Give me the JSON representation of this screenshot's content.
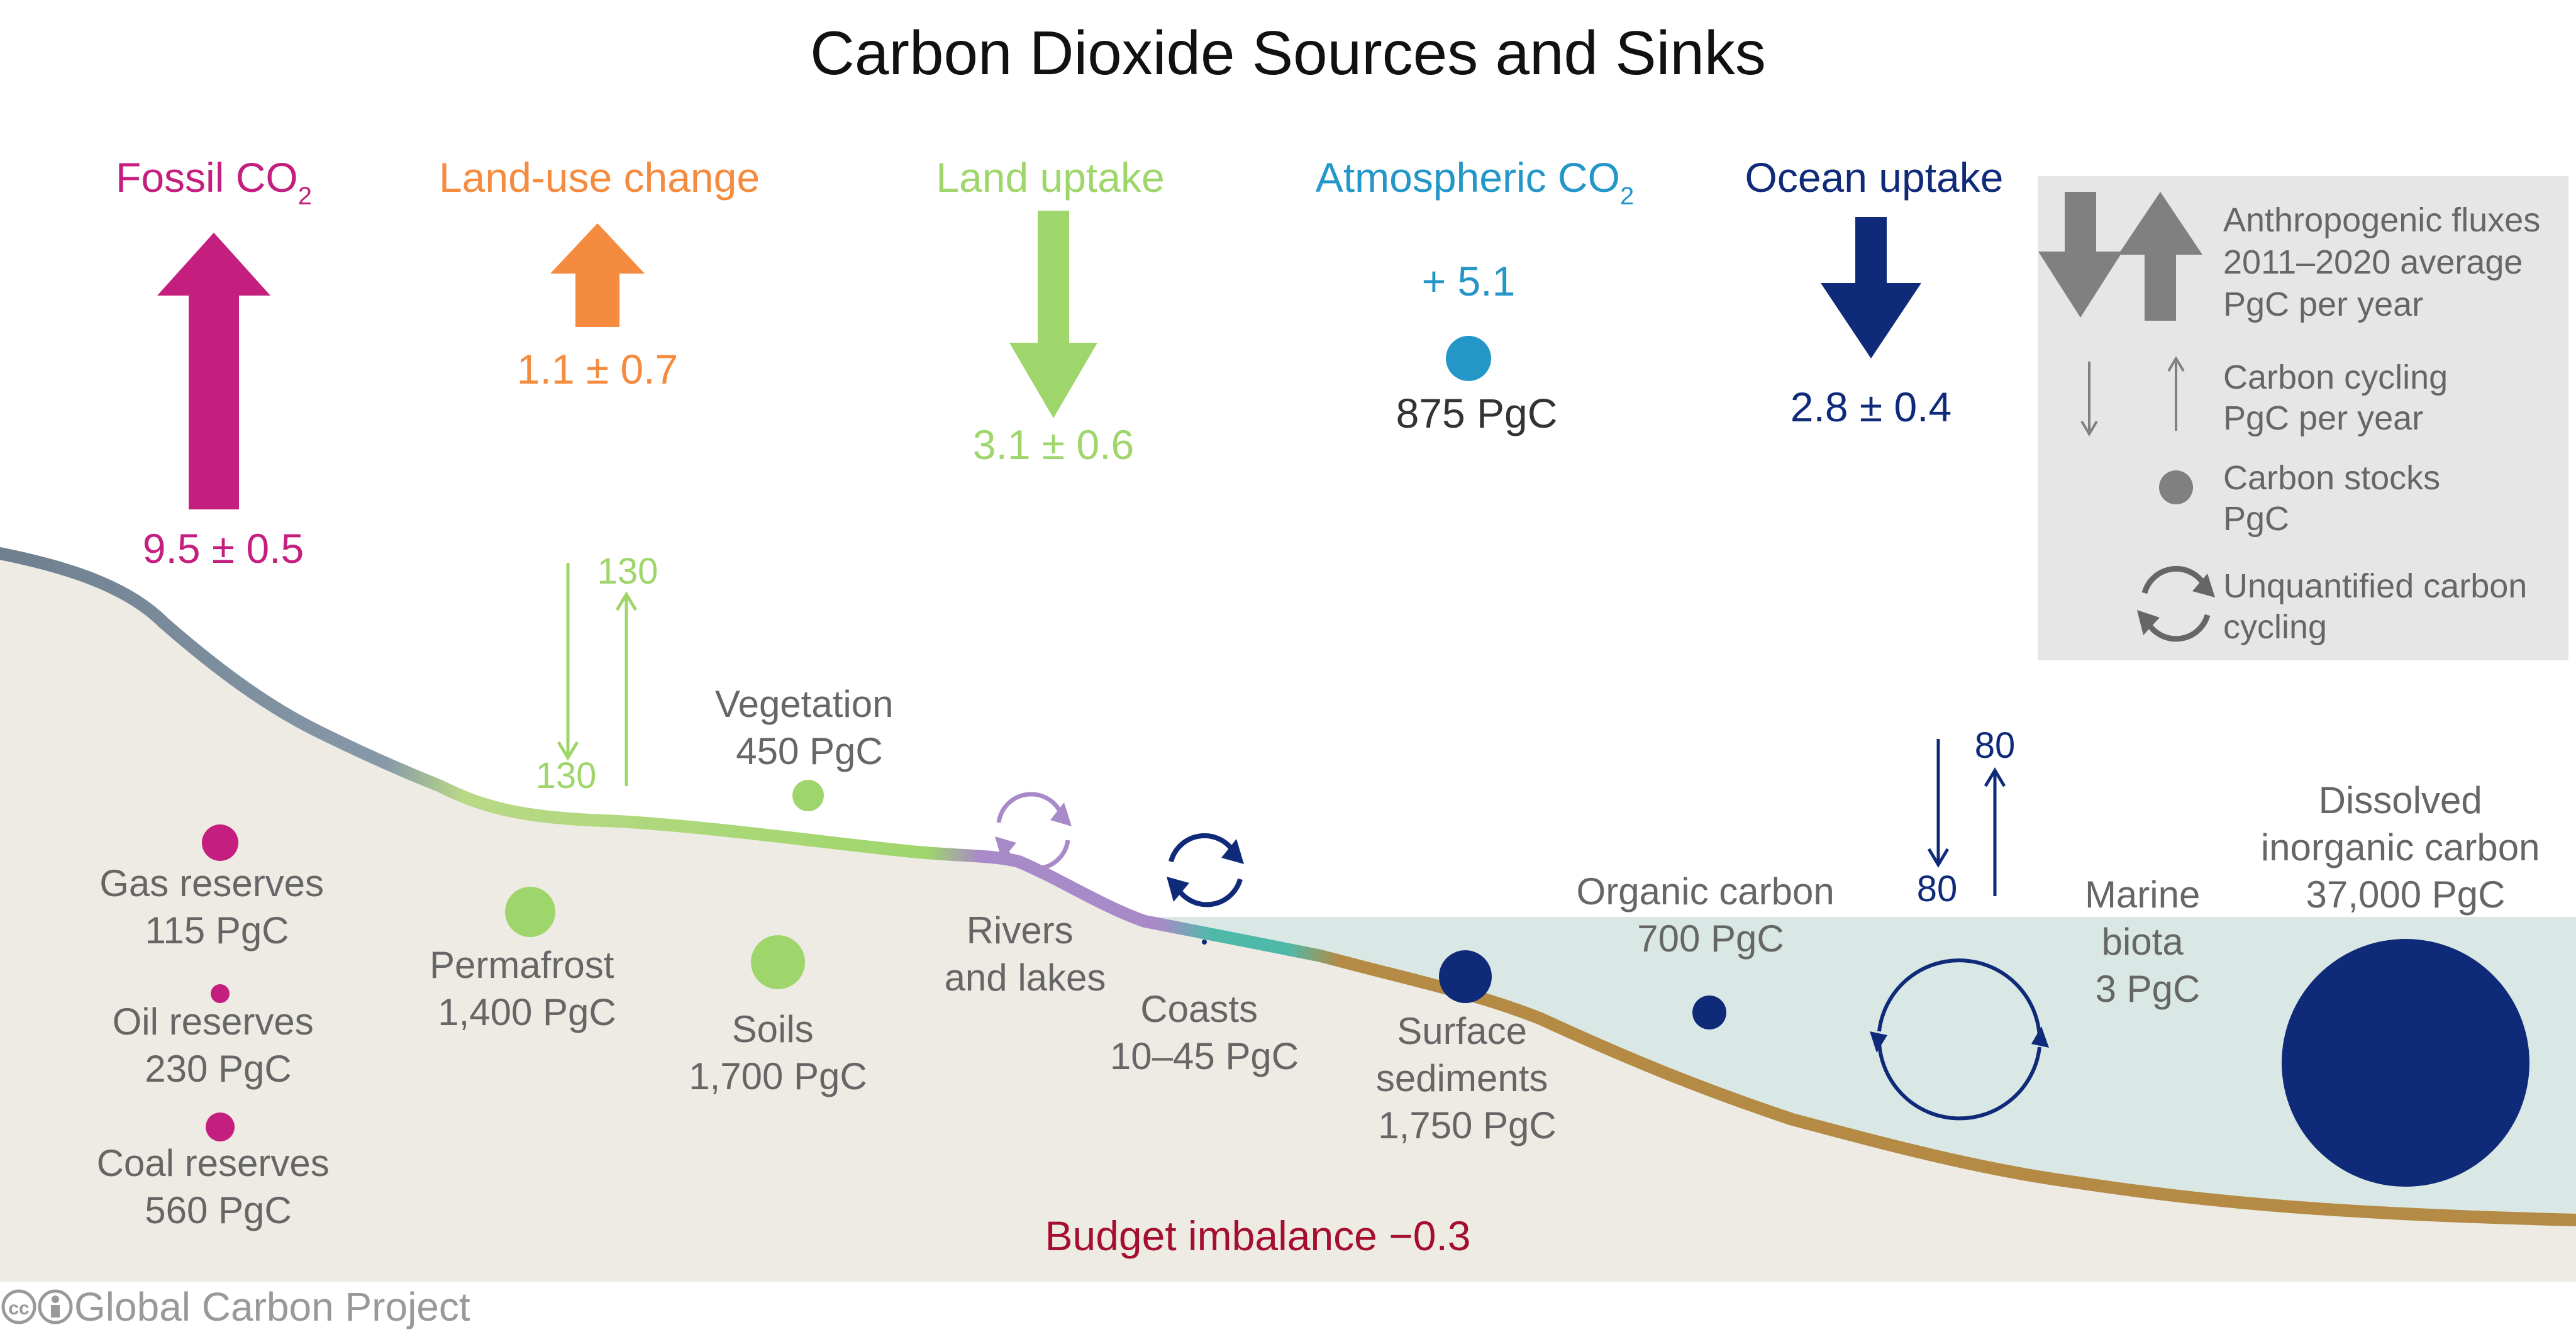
{
  "title": "Carbon Dioxide Sources and Sinks",
  "fluxes": {
    "fossil": {
      "label": "Fossil CO",
      "sub": "2",
      "value": "9.5 ± 0.5",
      "direction": "up",
      "color": "#c41f7e"
    },
    "land_use": {
      "label": "Land-use change",
      "value": "1.1 ± 0.7",
      "direction": "up",
      "color": "#f58b3f"
    },
    "land_uptake": {
      "label": "Land uptake",
      "value": "3.1 ± 0.6",
      "direction": "down",
      "color": "#9fd66b"
    },
    "atmospheric": {
      "label": "Atmospheric CO",
      "sub": "2",
      "growth": "+ 5.1",
      "stock": "875 PgC",
      "color": "#2596c8"
    },
    "ocean_uptake": {
      "label": "Ocean uptake",
      "value": "2.8 ± 0.4",
      "direction": "down",
      "color": "#102a7a"
    }
  },
  "legend": {
    "anthropogenic": [
      "Anthropogenic fluxes",
      "2011–2020 average",
      "PgC per year"
    ],
    "cycling": [
      "Carbon cycling",
      "PgC per year"
    ],
    "stocks": [
      "Carbon stocks",
      "PgC"
    ],
    "unquantified": [
      "Unquantified carbon",
      "cycling"
    ]
  },
  "land_cycle": {
    "down": "130",
    "up": "130"
  },
  "ocean_cycle": {
    "down": "80",
    "up": "80"
  },
  "stocks": {
    "gas": [
      "Gas reserves",
      "115 PgC"
    ],
    "oil": [
      "Oil reserves",
      "230 PgC"
    ],
    "coal": [
      "Coal reserves",
      "560 PgC"
    ],
    "permafrost": [
      "Permafrost",
      "1,400 PgC"
    ],
    "vegetation": [
      "Vegetation",
      "450 PgC"
    ],
    "soils": [
      "Soils",
      "1,700 PgC"
    ],
    "rivers": [
      "Rivers",
      "and lakes"
    ],
    "coasts": [
      "Coasts",
      "10–45 PgC"
    ],
    "sediments": [
      "Surface",
      "sediments",
      "1,750 PgC"
    ],
    "organic": [
      "Organic carbon",
      "700 PgC"
    ],
    "marine": [
      "Marine",
      "biota",
      "3 PgC"
    ],
    "dissolved": [
      "Dissolved",
      "inorganic carbon",
      "37,000 PgC"
    ]
  },
  "budget": "Budget imbalance −0.3",
  "credit": "Global Carbon Project",
  "colors": {
    "ground": "#edebe4",
    "ocean": "#d9e8e4",
    "fossil_dot": "#c41f7e",
    "land_dot": "#9fd66b",
    "ocean_dot": "#102a7a",
    "grey_text": "#666666",
    "budget": "#a50e2f"
  }
}
